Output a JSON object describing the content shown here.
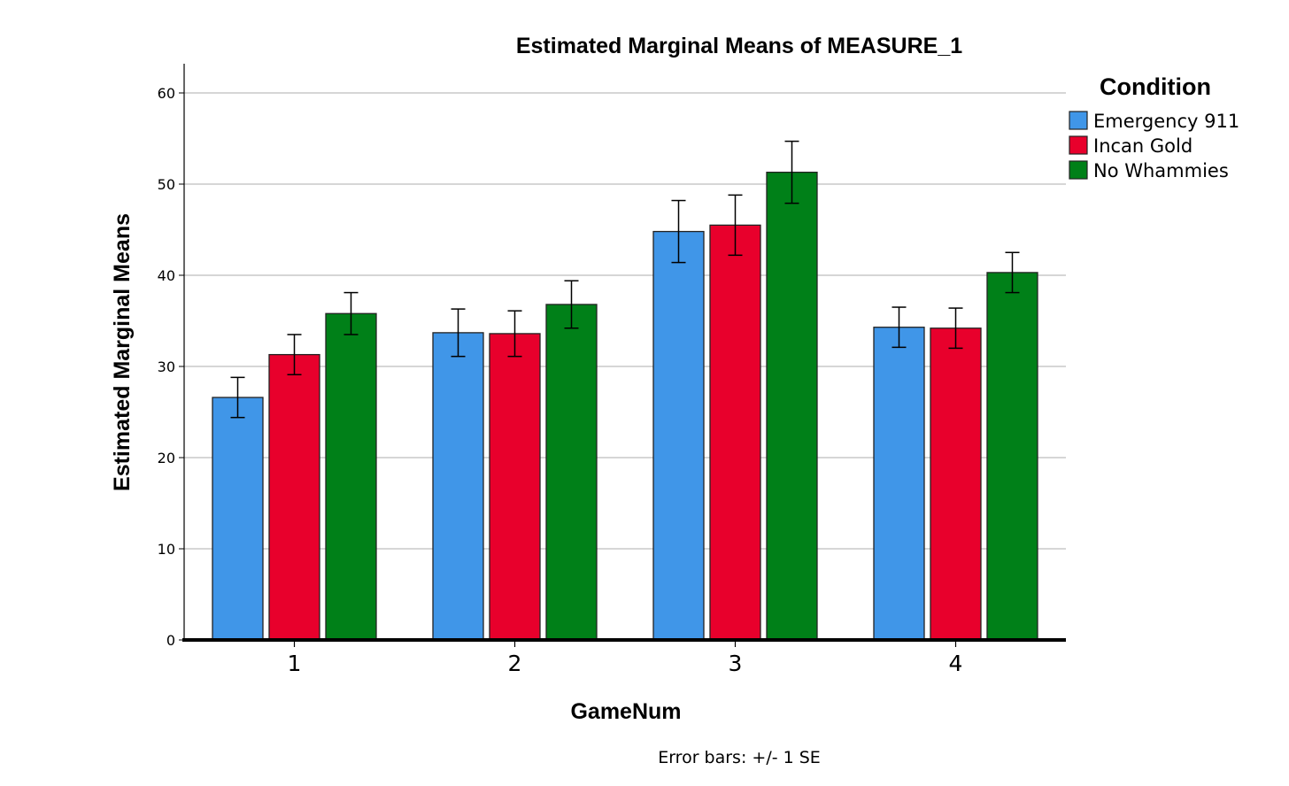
{
  "chart_data": {
    "type": "bar",
    "title": "Estimated Marginal Means of MEASURE_1",
    "xlabel": "GameNum",
    "ylabel": "Estimated Marginal Means",
    "categories": [
      "1",
      "2",
      "3",
      "4"
    ],
    "ylim": [
      0,
      63
    ],
    "yticks": [
      0,
      10,
      20,
      30,
      40,
      50,
      60
    ],
    "ytick_labels": [
      "0",
      "10",
      "20",
      "30",
      "40",
      "50",
      "60"
    ],
    "grid": true,
    "legend": {
      "title": "Condition",
      "placement": "top-right"
    },
    "series": [
      {
        "name": "Emergency 911",
        "color": "#4096e8",
        "values": [
          26.6,
          33.7,
          44.8,
          34.3
        ],
        "error": [
          2.2,
          2.6,
          3.4,
          2.2
        ]
      },
      {
        "name": "Incan Gold",
        "color": "#e8002c",
        "values": [
          31.3,
          33.6,
          45.5,
          34.2
        ],
        "error": [
          2.2,
          2.5,
          3.3,
          2.2
        ]
      },
      {
        "name": "No Whammies",
        "color": "#008018",
        "values": [
          35.8,
          36.8,
          51.3,
          40.3
        ],
        "error": [
          2.3,
          2.6,
          3.4,
          2.2
        ]
      }
    ],
    "note": "Error bars: +/- 1 SE"
  }
}
